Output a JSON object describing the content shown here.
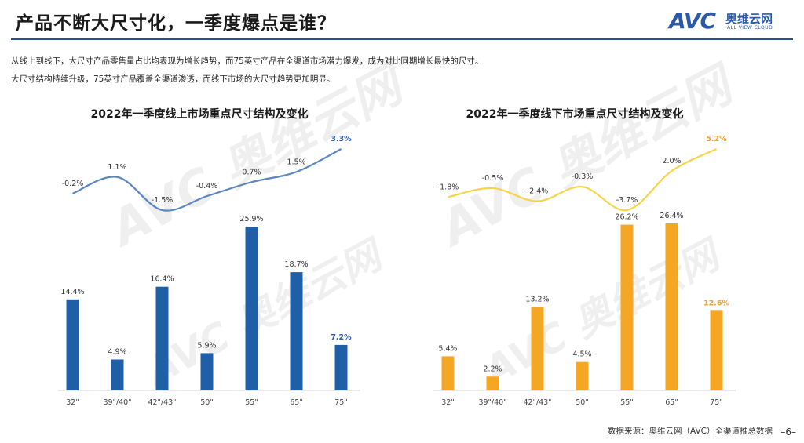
{
  "header": {
    "title": "产品不断大尺寸化，一季度爆点是谁？",
    "logo_avc": "AVC",
    "logo_cn": "奥维云网",
    "logo_en": "ALL VIEW CLOUD"
  },
  "intro": {
    "line1": "从线上到线下，大尺寸产品零售量占比均表现为增长趋势，而75英寸产品在全渠道市场潜力爆发，成为对比同期增长最快的尺寸。",
    "line2": "大尺寸结构持续升级，75英寸产品覆盖全渠道渗透，而线下市场的大尺寸趋势更加明显。"
  },
  "footer": {
    "source": "数据来源：奥维云网（AVC）全渠道推总数据",
    "page": "–6–"
  },
  "colors": {
    "online_bar": "#1f5fa8",
    "online_line": "#5a86c2",
    "offline_bar": "#f5a623",
    "offline_line": "#f7d44a",
    "highlight_online": "#2a5aa8",
    "highlight_offline": "#f0a030"
  },
  "chart_data": [
    {
      "type": "bar",
      "title": "2022年一季度线上市场重点尺寸结构及变化",
      "categories": [
        "32\"",
        "39\"/40\"",
        "42\"/43\"",
        "50\"",
        "55\"",
        "65\"",
        "75\""
      ],
      "series": [
        {
          "values": [
            14.4,
            4.9,
            16.4,
            5.9,
            25.9,
            18.7,
            7.2
          ],
          "labels": [
            "14.4%",
            "4.9%",
            "16.4%",
            "5.9%",
            "25.9%",
            "18.7%",
            "7.2%"
          ]
        },
        {
          "type": "line",
          "values": [
            -0.2,
            1.1,
            -1.5,
            -0.4,
            0.7,
            1.5,
            3.3
          ],
          "labels": [
            "-0.2%",
            "1.1%",
            "-1.5%",
            "-0.4%",
            "0.7%",
            "1.5%",
            "3.3%"
          ]
        }
      ],
      "highlight_index": 6,
      "grid": false
    },
    {
      "type": "bar",
      "title": "2022年一季度线下市场重点尺寸结构及变化",
      "categories": [
        "32\"",
        "39\"/40\"",
        "42\"/43\"",
        "50\"",
        "55\"",
        "65\"",
        "75\""
      ],
      "series": [
        {
          "values": [
            5.4,
            2.2,
            13.2,
            4.5,
            26.2,
            26.4,
            12.6
          ],
          "labels": [
            "5.4%",
            "2.2%",
            "13.2%",
            "4.5%",
            "26.2%",
            "26.4%",
            "12.6%"
          ]
        },
        {
          "type": "line",
          "values": [
            -1.8,
            -0.5,
            -2.4,
            -0.3,
            -3.7,
            2.0,
            5.2
          ],
          "labels": [
            "-1.8%",
            "-0.5%",
            "-2.4%",
            "-0.3%",
            "-3.7%",
            "2.0%",
            "5.2%"
          ]
        }
      ],
      "highlight_index": 6,
      "grid": false
    }
  ]
}
